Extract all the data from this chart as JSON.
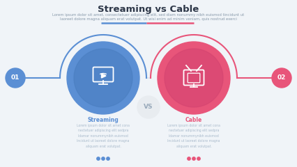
{
  "title": "Streaming vs Cable",
  "subtitle_line1": "Lorem ipsum dolor sit amet, consectetuer adipiscing elit, sed diam nonummy nibh euismod tincidunt ut",
  "subtitle_line2": "laoreet dolore magna aliquam erat volutpat. Ut wisi enim ad minim veniam, quis nostrud exerci",
  "bg_color": "#f0f4f8",
  "white_color": "#ffffff",
  "blue_color": "#5b8fd4",
  "blue_inner": "#4a7ec0",
  "pink_color": "#e8557a",
  "pink_inner": "#d44470",
  "label_blue": "Streaming",
  "label_pink": "Cable",
  "num_left": "01",
  "num_right": "02",
  "body_text_left": "Lorem ipsum dolor sit amet cona\nnectetuer adipiscing elit sedpra\nldamar nonummynibh euismod\nIncidunt ut laoreet dolore magna\naliquam erat volutpat.",
  "body_text_right": "Lorem ipsum dolor sit amet cona\nnectetuer adipiscing elit sedpra\nldamar nonummynibh euismod\nIncidunt ut laoreet dolore magna\naliquam erat volutpat.",
  "vs_text": "VS",
  "divider_left_color": "#5b8fd4",
  "divider_right_color": "#e8557a",
  "line_color": "#e0e6ee",
  "text_gray": "#aabbcc",
  "vs_bg": "#e8ecf0",
  "vs_color": "#99aabb"
}
